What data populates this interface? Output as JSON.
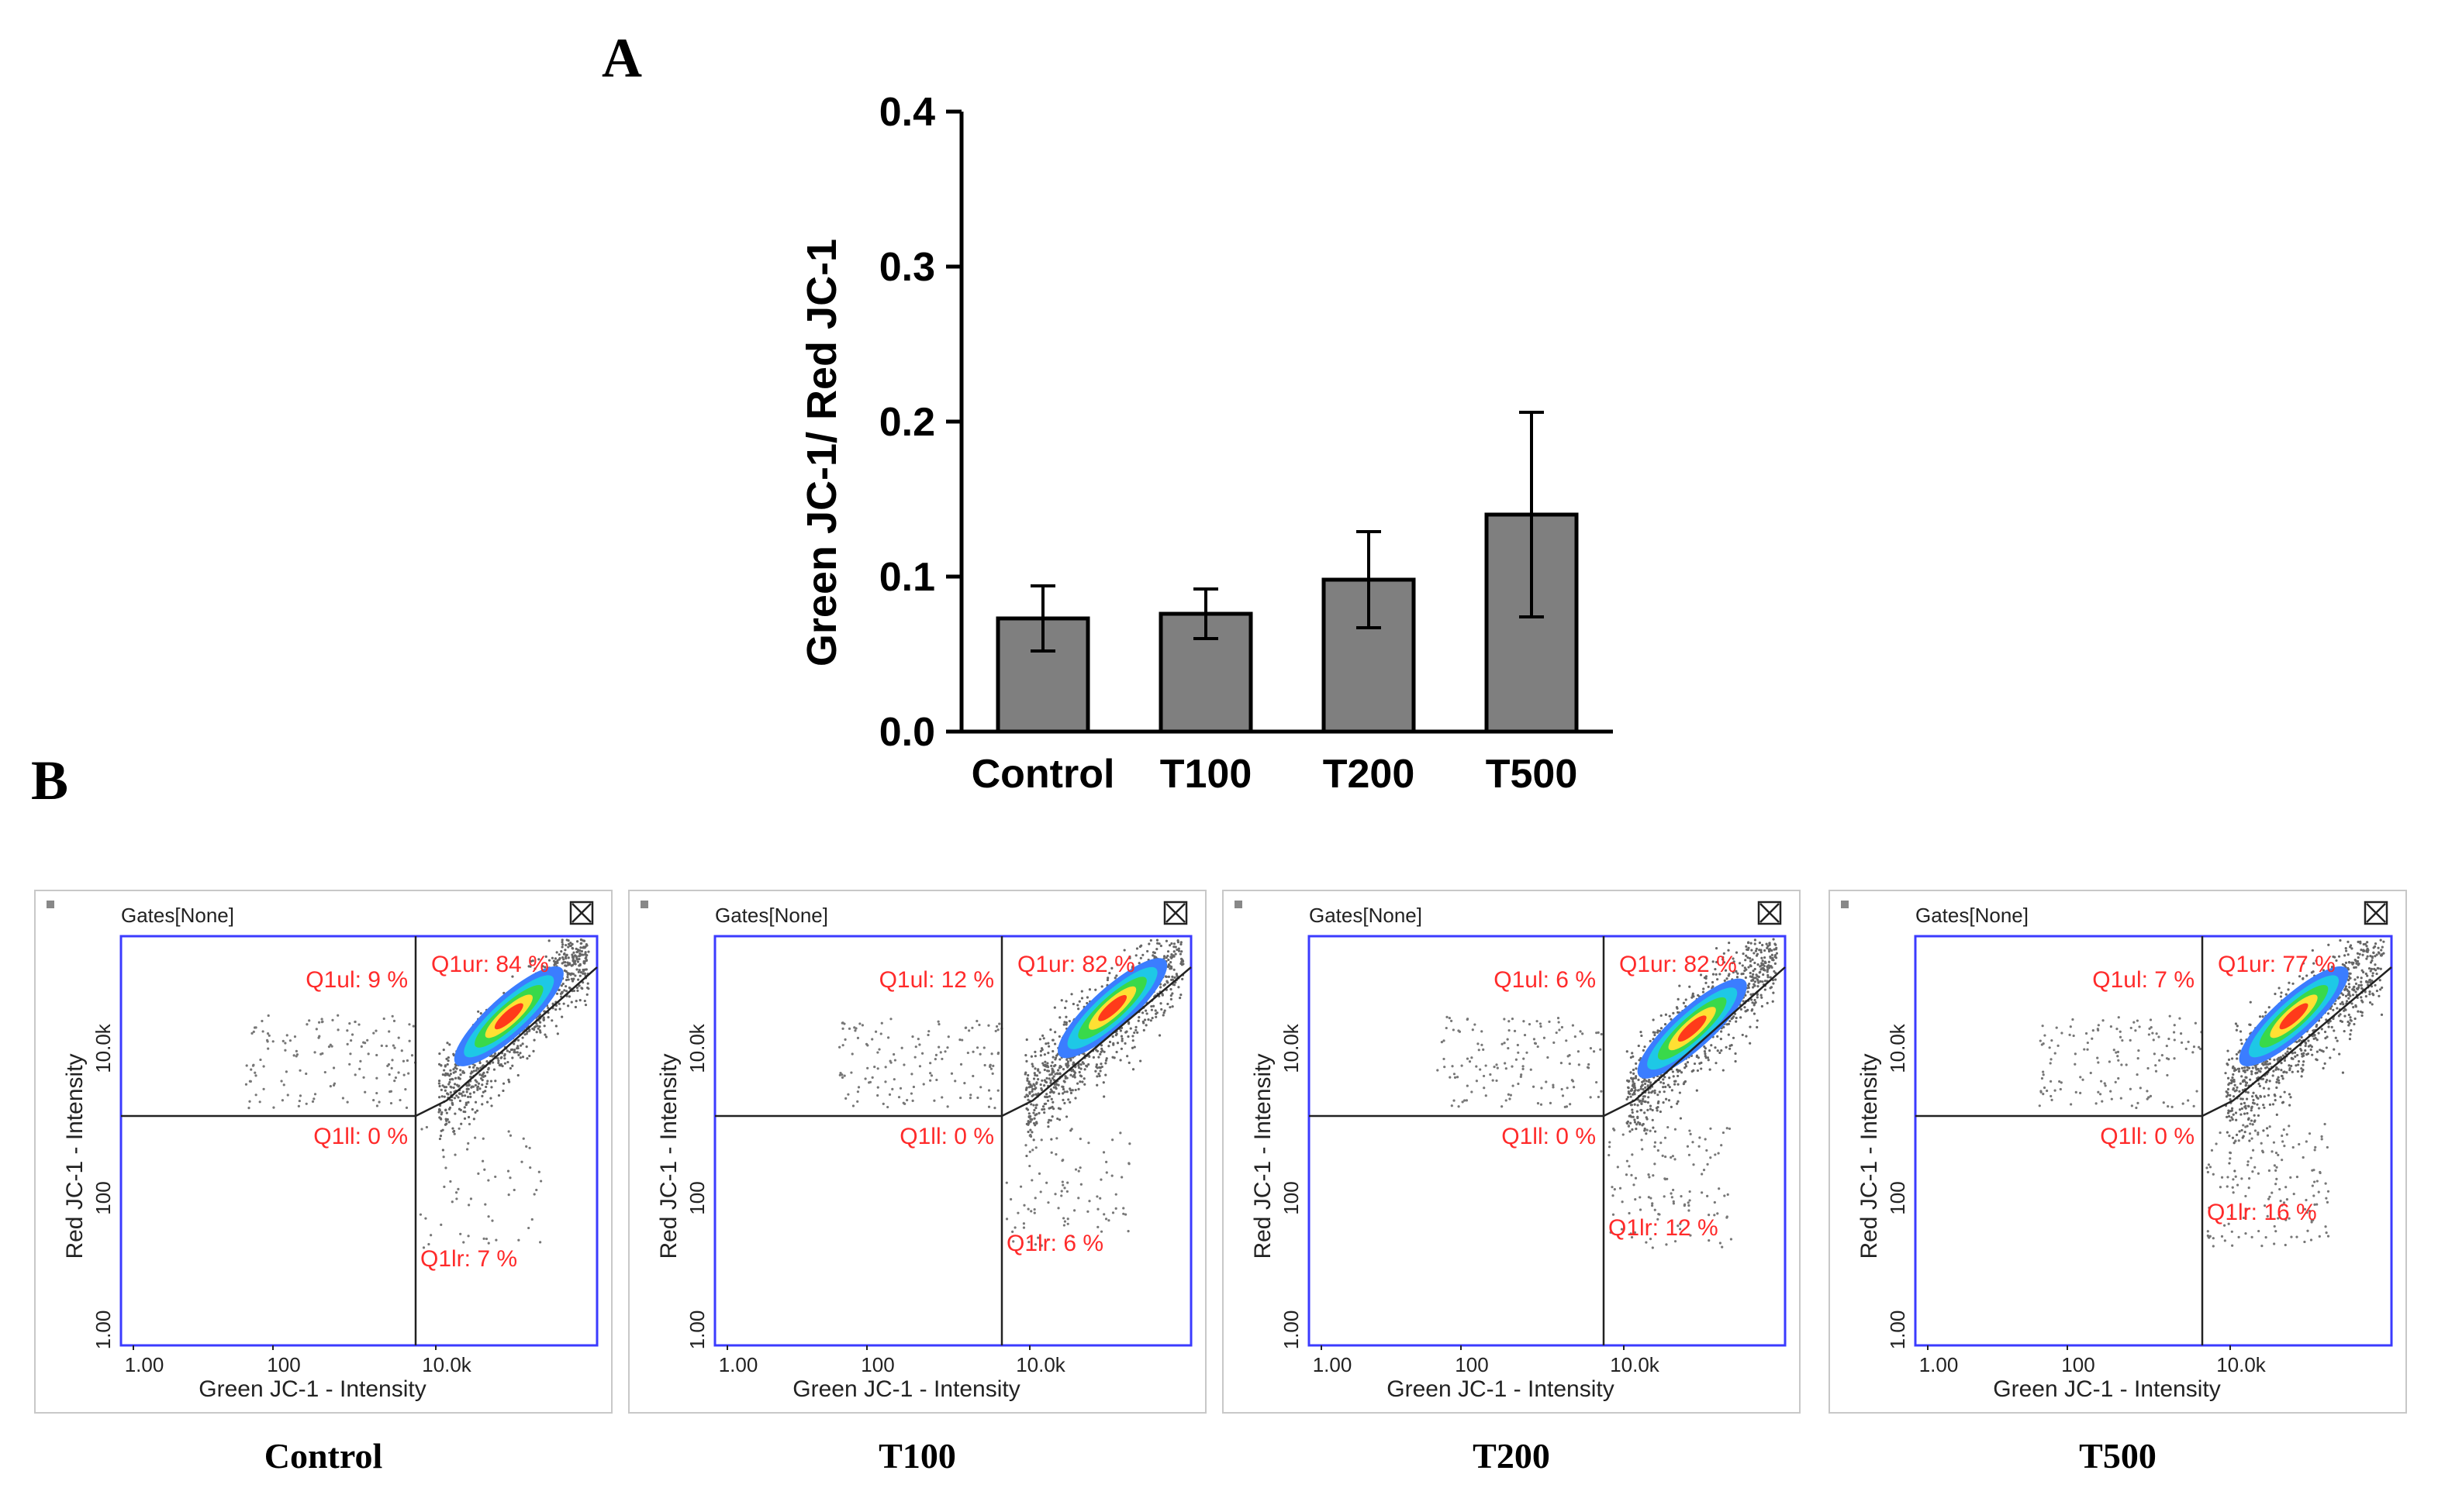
{
  "panels": {
    "a": "A",
    "b": "B"
  },
  "chart_data": {
    "type": "bar",
    "title": "",
    "xlabel": "",
    "ylabel": "Green JC-1/ Red JC-1",
    "categories": [
      "Control",
      "T100",
      "T200",
      "T500"
    ],
    "values": [
      0.073,
      0.076,
      0.098,
      0.14
    ],
    "errors": [
      0.021,
      0.016,
      0.031,
      0.066
    ],
    "ylim": [
      0,
      0.4
    ],
    "yticks": [
      "0.0",
      "0.1",
      "0.2",
      "0.3",
      "0.4"
    ],
    "bar_color": "#7f7f7f"
  },
  "cytometry": {
    "header": "Gates[None]",
    "xlabel": "Green JC-1 - Intensity",
    "ylabel": "Red JC-1 - Intensity",
    "xticks": [
      "1.00",
      "100",
      "10.0k"
    ],
    "yticks": [
      "1.00",
      "100",
      "10.0k"
    ],
    "frame_color": "#3b3bff",
    "label_color": "#ff2a2a",
    "plots": [
      {
        "label": "Control",
        "ul": "Q1ul: 9 %",
        "ur": "Q1ur: 84 %",
        "ll": "Q1ll: 0 %",
        "lr": "Q1lr: 7 %"
      },
      {
        "label": "T100",
        "ul": "Q1ul: 12 %",
        "ur": "Q1ur: 82 %",
        "ll": "Q1ll: 0 %",
        "lr": "Q1lr: 6 %"
      },
      {
        "label": "T200",
        "ul": "Q1ul: 6 %",
        "ur": "Q1ur: 82 %",
        "ll": "Q1ll: 0 %",
        "lr": "Q1lr: 12 %"
      },
      {
        "label": "T500",
        "ul": "Q1ul: 7 %",
        "ur": "Q1ur: 77 %",
        "ll": "Q1ll: 0 %",
        "lr": "Q1lr: 16 %"
      }
    ]
  }
}
